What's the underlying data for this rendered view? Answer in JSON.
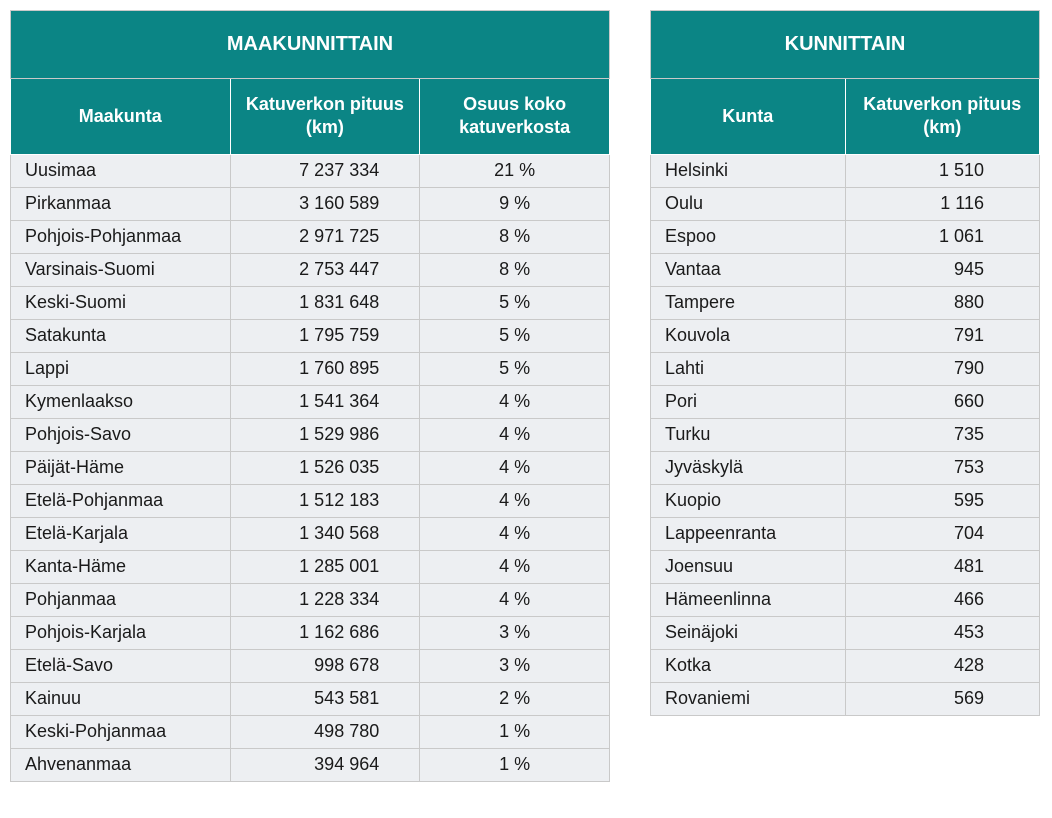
{
  "colors": {
    "header_bg": "#0b8585",
    "header_text": "#ffffff",
    "row_bg": "#edeff2",
    "row_text": "#1a1a1a",
    "border": "#c9c9c9"
  },
  "typography": {
    "title_fontsize": 20,
    "colhead_fontsize": 18,
    "cell_fontsize": 18,
    "font_family": "Verdana"
  },
  "left": {
    "title": "MAAKUNNITTAIN",
    "columns": [
      "Maakunta",
      "Katuverkon pituus (km)",
      "Osuus koko katuverkosta"
    ],
    "rows": [
      {
        "name": "Uusimaa",
        "length": "7 237 334",
        "share": "21 %"
      },
      {
        "name": "Pirkanmaa",
        "length": "3 160 589",
        "share": "9 %"
      },
      {
        "name": "Pohjois-Pohjanmaa",
        "length": "2 971 725",
        "share": "8 %"
      },
      {
        "name": "Varsinais-Suomi",
        "length": "2 753 447",
        "share": "8 %"
      },
      {
        "name": "Keski-Suomi",
        "length": "1 831 648",
        "share": "5 %"
      },
      {
        "name": "Satakunta",
        "length": "1 795 759",
        "share": "5 %"
      },
      {
        "name": "Lappi",
        "length": "1 760 895",
        "share": "5 %"
      },
      {
        "name": "Kymenlaakso",
        "length": "1 541 364",
        "share": "4 %"
      },
      {
        "name": "Pohjois-Savo",
        "length": "1 529 986",
        "share": "4 %"
      },
      {
        "name": "Päijät-Häme",
        "length": "1 526 035",
        "share": "4 %"
      },
      {
        "name": "Etelä-Pohjanmaa",
        "length": "1 512 183",
        "share": "4 %"
      },
      {
        "name": "Etelä-Karjala",
        "length": "1 340 568",
        "share": "4 %"
      },
      {
        "name": "Kanta-Häme",
        "length": "1 285 001",
        "share": "4 %"
      },
      {
        "name": "Pohjanmaa",
        "length": "1 228 334",
        "share": "4 %"
      },
      {
        "name": "Pohjois-Karjala",
        "length": "1 162 686",
        "share": "3 %"
      },
      {
        "name": "Etelä-Savo",
        "length": "998 678",
        "share": "3 %"
      },
      {
        "name": "Kainuu",
        "length": "543 581",
        "share": "2 %"
      },
      {
        "name": "Keski-Pohjanmaa",
        "length": "498 780",
        "share": "1 %"
      },
      {
        "name": "Ahvenanmaa",
        "length": "394 964",
        "share": "1 %"
      }
    ]
  },
  "right": {
    "title": "KUNNITTAIN",
    "columns": [
      "Kunta",
      "Katuverkon pituus (km)"
    ],
    "rows": [
      {
        "name": "Helsinki",
        "length": "1 510"
      },
      {
        "name": "Oulu",
        "length": "1 116"
      },
      {
        "name": "Espoo",
        "length": "1 061"
      },
      {
        "name": "Vantaa",
        "length": "945"
      },
      {
        "name": "Tampere",
        "length": "880"
      },
      {
        "name": "Kouvola",
        "length": "791"
      },
      {
        "name": "Lahti",
        "length": "790"
      },
      {
        "name": "Pori",
        "length": "660"
      },
      {
        "name": "Turku",
        "length": "735"
      },
      {
        "name": "Jyväskylä",
        "length": "753"
      },
      {
        "name": "Kuopio",
        "length": "595"
      },
      {
        "name": "Lappeenranta",
        "length": "704"
      },
      {
        "name": "Joensuu",
        "length": "481"
      },
      {
        "name": "Hämeenlinna",
        "length": "466"
      },
      {
        "name": "Seinäjoki",
        "length": "453"
      },
      {
        "name": "Kotka",
        "length": "428"
      },
      {
        "name": "Rovaniemi",
        "length": "569"
      }
    ]
  }
}
